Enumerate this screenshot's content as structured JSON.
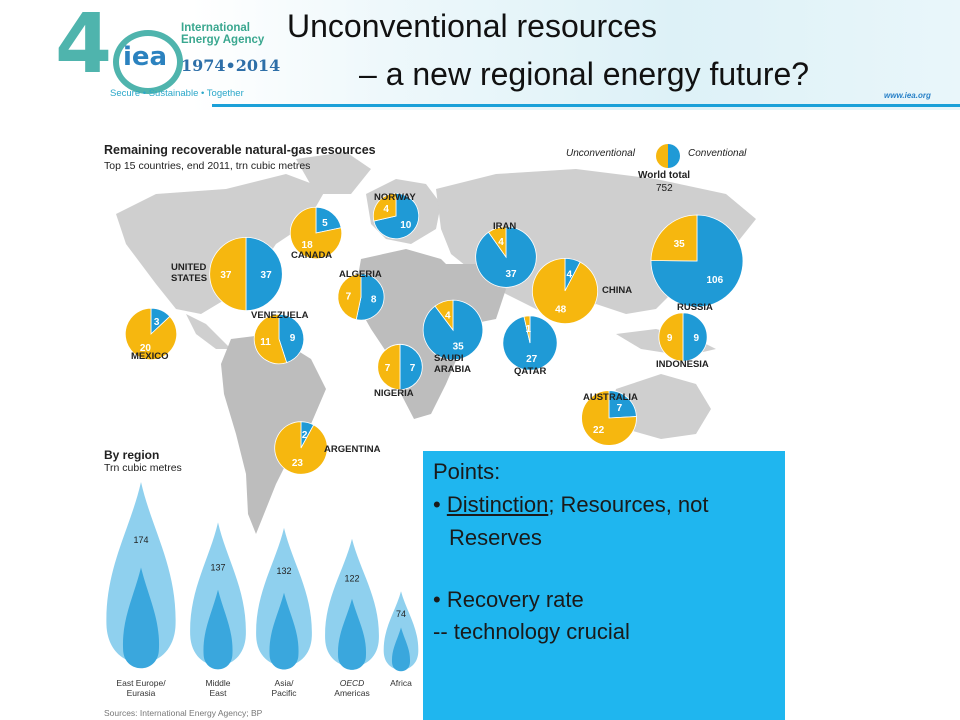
{
  "header": {
    "title_line1": "Unconventional resources",
    "title_line2": "– a new regional energy future?",
    "logo_number": "4",
    "logo_text": "iea",
    "logo_agency": "International Energy Agency",
    "logo_years": "1974•2014",
    "logo_motto": "Secure • Sustainable • Together",
    "url": "www.iea.org"
  },
  "colors": {
    "unconventional": "#f6b70f",
    "conventional": "#1f9ad6",
    "land": "#cfcfcf",
    "land_alt": "#bdbdbd",
    "notes_bg": "#1fb6ef"
  },
  "figure": {
    "title": "Remaining recoverable natural-gas resources",
    "subtitle": "Top 15 countries, end 2011, trn cubic metres",
    "legend_unconventional": "Unconventional",
    "legend_conventional": "Conventional",
    "world_total_label": "World total",
    "world_total_value": "752",
    "by_region_title": "By region",
    "by_region_unit": "Trn cubic metres",
    "sources": "Sources: International Energy Agency; BP"
  },
  "chart_data": [
    {
      "type": "pie",
      "title": "Remaining recoverable natural-gas resources",
      "subtitle": "Top 15 countries, end 2011, trn cubic metres",
      "series_names": [
        "Unconventional",
        "Conventional"
      ],
      "countries": [
        {
          "name": "UNITED STATES",
          "label_lines": [
            "UNITED",
            "STATES"
          ],
          "unconventional": 37,
          "conventional": 37
        },
        {
          "name": "CANADA",
          "label_lines": [
            "CANADA"
          ],
          "unconventional": 18,
          "conventional": 5
        },
        {
          "name": "MEXICO",
          "label_lines": [
            "MEXICO"
          ],
          "unconventional": 20,
          "conventional": 3
        },
        {
          "name": "VENEZUELA",
          "label_lines": [
            "VENEZUELA"
          ],
          "unconventional": 11,
          "conventional": 9
        },
        {
          "name": "ARGENTINA",
          "label_lines": [
            "ARGENTINA"
          ],
          "unconventional": 23,
          "conventional": 2
        },
        {
          "name": "NORWAY",
          "label_lines": [
            "NORWAY"
          ],
          "unconventional": 4,
          "conventional": 10
        },
        {
          "name": "ALGERIA",
          "label_lines": [
            "ALGERIA"
          ],
          "unconventional": 7,
          "conventional": 8
        },
        {
          "name": "NIGERIA",
          "label_lines": [
            "NIGERIA"
          ],
          "unconventional": 7,
          "conventional": 7
        },
        {
          "name": "SAUDI ARABIA",
          "label_lines": [
            "SAUDI",
            "ARABIA"
          ],
          "unconventional": 4,
          "conventional": 35
        },
        {
          "name": "IRAN",
          "label_lines": [
            "IRAN"
          ],
          "unconventional": 4,
          "conventional": 37
        },
        {
          "name": "QATAR",
          "label_lines": [
            "QATAR"
          ],
          "unconventional": 1,
          "conventional": 27
        },
        {
          "name": "RUSSIA",
          "label_lines": [
            "RUSSIA"
          ],
          "unconventional": 35,
          "conventional": 106
        },
        {
          "name": "CHINA",
          "label_lines": [
            "CHINA"
          ],
          "unconventional": 48,
          "conventional": 4
        },
        {
          "name": "INDONESIA",
          "label_lines": [
            "INDONESIA"
          ],
          "unconventional": 9,
          "conventional": 9
        },
        {
          "name": "AUSTRALIA",
          "label_lines": [
            "AUSTRALIA"
          ],
          "unconventional": 22,
          "conventional": 7
        }
      ],
      "world_total": 752
    },
    {
      "type": "bar",
      "title": "By region",
      "ylabel": "Trn cubic metres",
      "categories": [
        "East Europe/ Eurasia",
        "Middle East",
        "Asia/ Pacific",
        "OECD Americas",
        "Africa"
      ],
      "category_lines": [
        [
          "East Europe/",
          "Eurasia"
        ],
        [
          "Middle",
          "East"
        ],
        [
          "Asia/",
          "Pacific"
        ],
        [
          "OECD",
          "Americas"
        ],
        [
          "Africa"
        ]
      ],
      "values": [
        174,
        137,
        132,
        122,
        74
      ]
    }
  ],
  "notes": {
    "heading": "Points:",
    "bullet1_prefix": "• ",
    "bullet1_underlined": "Distinction",
    "bullet1_rest": "; Resources, not",
    "bullet1_cont": "Reserves",
    "bullet2": "• Recovery rate",
    "bullet3": "-- technology crucial"
  }
}
